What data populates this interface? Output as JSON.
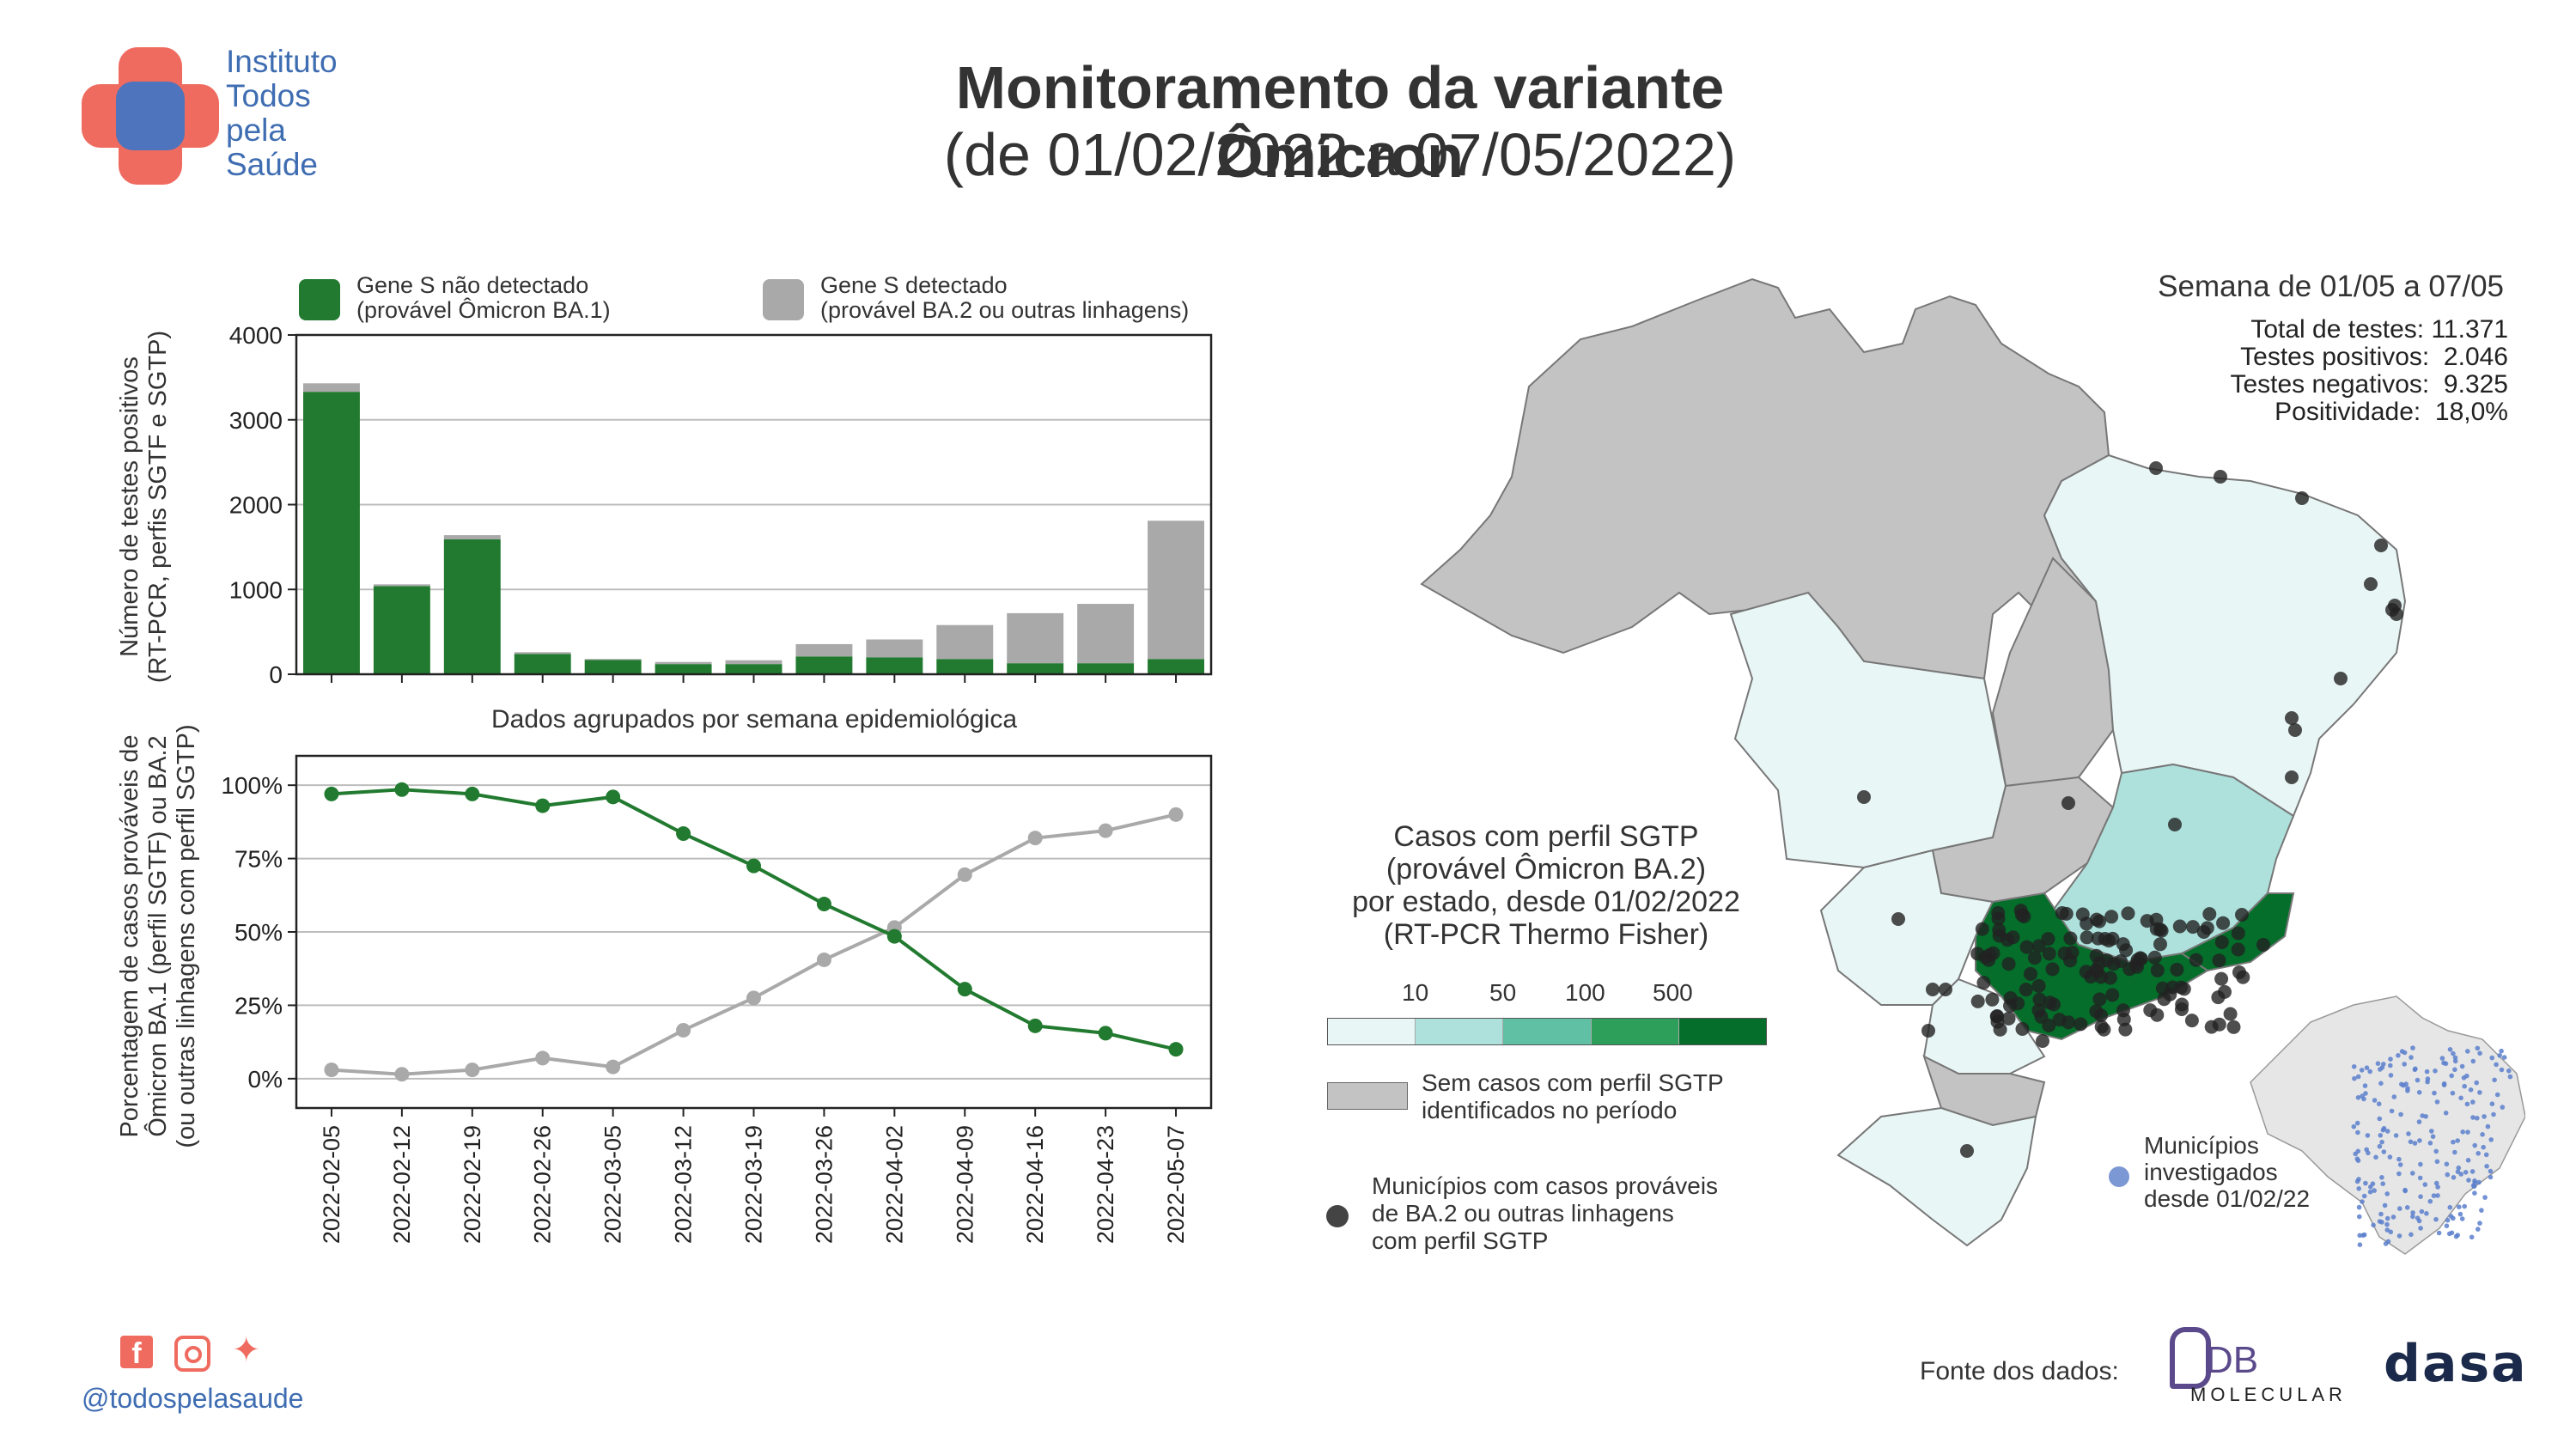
{
  "header": {
    "org_line1": "Instituto",
    "org_line2": "Todos",
    "org_line3": "pela",
    "org_line4": "Saúde",
    "title": "Monitoramento da variante Ômicron",
    "subtitle": "(de 01/02/2022 a 07/05/2022)"
  },
  "legend": {
    "s_not_detected_line1": "Gene S não detectado",
    "s_not_detected_line2": "(provável Ômicron BA.1)",
    "s_detected_line1": "Gene S detectado",
    "s_detected_line2": "(provável BA.2 ou outras linhagens)",
    "green": "#217a2f",
    "gray": "#a9a9a9"
  },
  "chart_data": [
    {
      "type": "bar",
      "stacked": true,
      "ylabel_line1": "Número de testes positivos",
      "ylabel_line2": "(RT-PCR, perfis SGTF e SGTP)",
      "ylim": [
        0,
        4000
      ],
      "yticks": [
        "0",
        "1000",
        "2000",
        "3000",
        "4000"
      ],
      "xlabel": "Dados agrupados por semana epidemiológica",
      "categories": [
        "2022-02-05",
        "2022-02-12",
        "2022-02-19",
        "2022-02-26",
        "2022-03-05",
        "2022-03-12",
        "2022-03-19",
        "2022-03-26",
        "2022-04-02",
        "2022-04-09",
        "2022-04-16",
        "2022-04-23",
        "2022-05-07"
      ],
      "series": [
        {
          "name": "Gene S não detectado (provável Ômicron BA.1)",
          "color": "#217a2f",
          "values": [
            3330,
            1040,
            1590,
            240,
            170,
            120,
            120,
            210,
            200,
            180,
            130,
            130,
            180
          ]
        },
        {
          "name": "Gene S detectado (provável BA.2 ou outras linhagens)",
          "color": "#a9a9a9",
          "values": [
            100,
            20,
            50,
            20,
            10,
            25,
            45,
            145,
            210,
            400,
            590,
            700,
            1630
          ]
        }
      ]
    },
    {
      "type": "line",
      "ylabel_line1": "Porcentagem de casos prováveis de",
      "ylabel_line2": "Ômicron BA.1 (perfil SGTF) ou BA.2",
      "ylabel_line3": "(ou outras linhagens com perfil SGTP)",
      "ylim": [
        -10,
        110
      ],
      "yticks": [
        "0%",
        "25%",
        "50%",
        "75%",
        "100%"
      ],
      "ytick_values": [
        0,
        25,
        50,
        75,
        100
      ],
      "categories": [
        "2022-02-05",
        "2022-02-12",
        "2022-02-19",
        "2022-02-26",
        "2022-03-05",
        "2022-03-12",
        "2022-03-19",
        "2022-03-26",
        "2022-04-02",
        "2022-04-09",
        "2022-04-16",
        "2022-04-23",
        "2022-05-07"
      ],
      "series": [
        {
          "name": "Gene S não detectado (provável Ômicron BA.1)",
          "color": "#217a2f",
          "values": [
            97,
            98.5,
            97,
            93,
            96,
            83.5,
            72.5,
            59.5,
            48.5,
            30.5,
            18,
            15.5,
            10
          ]
        },
        {
          "name": "Gene S detectado (provável BA.2 ou outras linhagens)",
          "color": "#a9a9a9",
          "values": [
            3,
            1.5,
            3,
            7,
            4,
            16.5,
            27.5,
            40.5,
            51.5,
            69.5,
            82,
            84.5,
            90
          ]
        }
      ]
    }
  ],
  "map": {
    "week_title": "Semana de 01/05 a 07/05",
    "stats": [
      {
        "label": "Total de testes:",
        "value": "11.371"
      },
      {
        "label": "Testes positivos:",
        "value": "2.046"
      },
      {
        "label": "Testes negativos:",
        "value": "9.325"
      },
      {
        "label": "Positividade:",
        "value": "18,0%"
      }
    ],
    "legend_title_line1": "Casos com perfil SGTP",
    "legend_title_line2": "(provável Ômicron BA.2)",
    "legend_title_line3": "por estado, desde 01/02/2022",
    "legend_title_line4": "(RT-PCR Thermo Fisher)",
    "scale_ticks": [
      "10",
      "50",
      "100",
      "500"
    ],
    "scale_colors": [
      "#e9f6f6",
      "#aee0dc",
      "#5fc0a4",
      "#2e9e5b",
      "#046e2a"
    ],
    "no_cases_line1": "Sem casos com perfil SGTP",
    "no_cases_line2": "identificados no período",
    "municipios_line1": "Municípios com casos prováveis",
    "municipios_line2": "de BA.2 ou outras linhagens",
    "municipios_line3": "com perfil SGTP",
    "investigated_line1": "Municípios",
    "investigated_line2": "investigados",
    "investigated_line3": "desde 01/02/22"
  },
  "footer": {
    "handle": "@todospelasaude",
    "source_label": "Fonte dos dados:",
    "partner1_top": "DB",
    "partner1_bottom": "MOLECULAR",
    "partner2": "dasa"
  }
}
